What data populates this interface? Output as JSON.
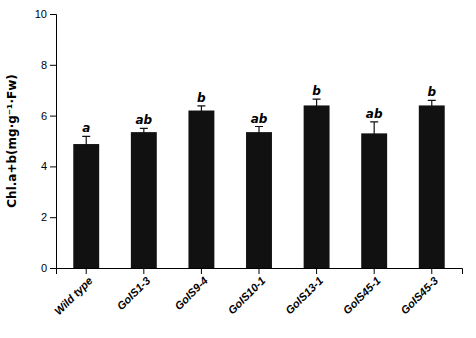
{
  "chart_data": {
    "type": "bar",
    "categories": [
      "Wild type",
      "GoIS1-3",
      "GoIS9-4",
      "GoIS10-1",
      "GoIS13-1",
      "GoIS45-1",
      "GoIS45-3"
    ],
    "values": [
      4.88,
      5.35,
      6.2,
      5.35,
      6.4,
      5.3,
      6.4
    ],
    "errors": [
      0.3,
      0.15,
      0.18,
      0.22,
      0.25,
      0.45,
      0.2
    ],
    "annotations": [
      "a",
      "ab",
      "b",
      "ab",
      "b",
      "ab",
      "b"
    ],
    "color": "#111111",
    "ylabel": "Chl.a+b(mg·g⁻¹·Fw)",
    "ylim": [
      0,
      10
    ],
    "yticks": [
      0,
      2,
      4,
      6,
      8,
      10
    ],
    "grid": false
  }
}
